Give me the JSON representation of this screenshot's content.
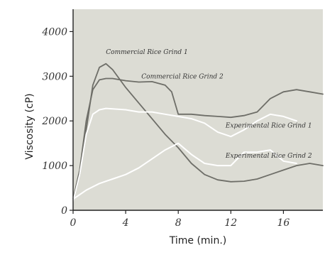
{
  "chart_data": {
    "type": "line",
    "title": "",
    "xlabel": "Time (min.)",
    "ylabel": "Viscosity (cP)",
    "xlim": [
      0,
      19
    ],
    "ylim": [
      0,
      4500
    ],
    "x_ticks": [
      "0",
      "4",
      "8",
      "12",
      "16"
    ],
    "y_ticks": [
      "0",
      "1000",
      "2000",
      "3000",
      "4000"
    ],
    "x_tick_values": [
      0,
      4,
      8,
      12,
      16
    ],
    "y_tick_values": [
      0,
      1000,
      2000,
      3000,
      4000
    ],
    "grid": false,
    "colors": {
      "plot_background": "#dcdcd4",
      "commercial": "#6e6e68",
      "experimental": "#ffffff",
      "commercial_label": "#333333",
      "experimental_label": "#333333"
    },
    "series": [
      {
        "name": "Commercial Rice Grind 1",
        "group": "commercial",
        "x": [
          0,
          0.5,
          1,
          1.5,
          2,
          2.5,
          3,
          4,
          5,
          6,
          7,
          8,
          9,
          10,
          11,
          12,
          13,
          14,
          15,
          16,
          17,
          18,
          19
        ],
        "y": [
          200,
          800,
          1800,
          2800,
          3200,
          3280,
          3150,
          2750,
          2400,
          2050,
          1700,
          1400,
          1050,
          800,
          680,
          640,
          650,
          700,
          800,
          900,
          1000,
          1050,
          1000
        ]
      },
      {
        "name": "Commercial Rice Grind 2",
        "group": "commercial",
        "x": [
          0,
          0.5,
          1,
          1.5,
          2,
          2.5,
          3,
          4,
          5,
          6,
          7,
          7.5,
          8,
          9,
          10,
          11,
          12,
          13,
          14,
          15,
          16,
          17,
          18,
          19
        ],
        "y": [
          250,
          900,
          2000,
          2700,
          2920,
          2950,
          2950,
          2900,
          2870,
          2880,
          2800,
          2650,
          2150,
          2150,
          2120,
          2100,
          2080,
          2120,
          2200,
          2500,
          2650,
          2700,
          2650,
          2600
        ]
      },
      {
        "name": "Experimental Rice Grind 1",
        "group": "experimental",
        "x": [
          0,
          0.5,
          1,
          1.5,
          2,
          2.5,
          3,
          4,
          5,
          6,
          7,
          8,
          9,
          10,
          11,
          12,
          13,
          14,
          15,
          16,
          17
        ],
        "y": [
          200,
          800,
          1700,
          2150,
          2250,
          2280,
          2270,
          2250,
          2200,
          2200,
          2150,
          2100,
          2050,
          1950,
          1750,
          1650,
          1800,
          2000,
          2150,
          2100,
          2000
        ]
      },
      {
        "name": "Experimental Rice Grind 2",
        "group": "experimental",
        "x": [
          0,
          0.5,
          1,
          2,
          3,
          4,
          5,
          6,
          7,
          8,
          9,
          10,
          11,
          12,
          13,
          14,
          15,
          16,
          17
        ],
        "y": [
          250,
          350,
          450,
          600,
          700,
          800,
          950,
          1150,
          1350,
          1500,
          1250,
          1050,
          1000,
          1000,
          1300,
          1300,
          1350,
          1100,
          1050
        ]
      }
    ],
    "annotations": [
      {
        "series": 0,
        "text": "Commercial Rice Grind 1",
        "x": 2.5,
        "y": 3500
      },
      {
        "series": 1,
        "text": "Commercial Rice Grind 2",
        "x": 5.2,
        "y": 2950
      },
      {
        "series": 2,
        "text": "Experimental Rice Grind 1",
        "x": 11.6,
        "y": 1850
      },
      {
        "series": 3,
        "text": "Experimental Rice Grind 2",
        "x": 11.6,
        "y": 1180
      }
    ]
  }
}
